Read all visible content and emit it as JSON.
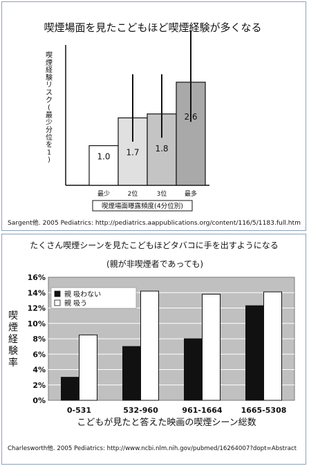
{
  "chart_data": [
    {
      "type": "bar",
      "title": "喫煙場面を見たこどもほど喫煙経験が多くなる",
      "ylabel": "喫煙経験リスク(最少分位を1)",
      "xlabel": "喫煙場面曝露頻度(4分位別)",
      "categories": [
        "最少",
        "2位",
        "3位",
        "最多"
      ],
      "values": [
        1.0,
        1.7,
        1.8,
        2.6
      ],
      "value_labels": [
        "1.0",
        "1.7",
        "1.8",
        "2.6"
      ],
      "ci_low": [
        1.0,
        1.1,
        1.2,
        1.6
      ],
      "ci_high": [
        1.0,
        2.8,
        2.8,
        3.9
      ],
      "bar_colors": [
        "#ffffff",
        "#e0e0e0",
        "#c4c4c4",
        "#a9a9a9"
      ],
      "ylim": [
        0,
        3.4
      ],
      "grid": false,
      "source": "Sargent他. 2005 Pediatrics: http://pediatrics.aappublications.org/content/116/5/1183.full.htm"
    },
    {
      "type": "bar",
      "title": "たくさん喫煙シーンを見たこどもほどタバコに手を出すようになる",
      "subtitle": "(親が非喫煙者であっても)",
      "ylabel": "喫煙経験率",
      "xlabel": "こどもが見たと答えた映画の喫煙シーン総数",
      "categories": [
        "0-531",
        "532-960",
        "961-1664",
        "1665-5308"
      ],
      "series": [
        {
          "name": "親 吸わない",
          "color": "#111111",
          "values": [
            3.0,
            7.0,
            8.0,
            12.3
          ]
        },
        {
          "name": "親 吸う",
          "color": "#ffffff",
          "values": [
            8.5,
            14.2,
            13.8,
            14.1
          ]
        }
      ],
      "yticks": [
        "0%",
        "2%",
        "4%",
        "6%",
        "8%",
        "10%",
        "12%",
        "14%",
        "16%"
      ],
      "ylim": [
        0,
        16
      ],
      "grid": true,
      "legend": "top-left",
      "background": "#c0c0c0",
      "source": "Charlesworth他. 2005 Pediatrics: http://www.ncbi.nlm.nih.gov/pubmed/16264007?dopt=Abstract"
    }
  ]
}
